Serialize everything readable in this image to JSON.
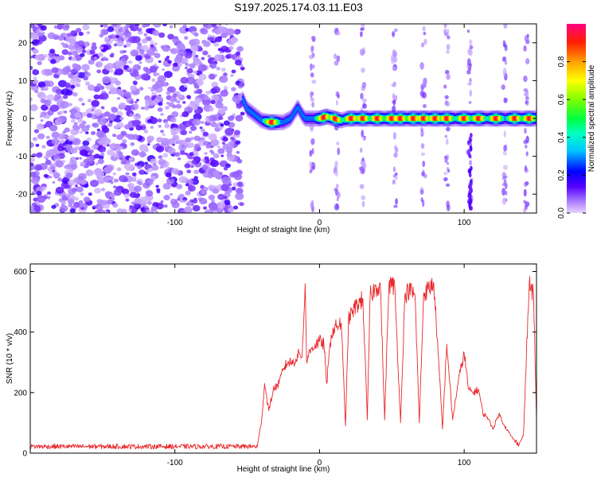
{
  "title": "S197.2025.174.03.11.E03",
  "chart_data": [
    {
      "type": "heatmap",
      "xlabel": "Height of straight line (km)",
      "ylabel": "Frequency (Hz)",
      "xlim": [
        -200,
        150
      ],
      "ylim": [
        -25,
        25
      ],
      "xticks": [
        -100,
        0,
        100
      ],
      "yticks": [
        -20,
        -10,
        0,
        10,
        20
      ],
      "colorbar": {
        "label": "Normalized spectral amplitude",
        "range": [
          0,
          1
        ],
        "ticks": [
          "0.0",
          "0.2",
          "0.4",
          "0.6",
          "0.8"
        ]
      },
      "noise_region": {
        "x_range": [
          -200,
          -53
        ],
        "description_color": "#7a2bff"
      },
      "signal_ridge": {
        "frequency_track": [
          {
            "x": -53,
            "y": 5
          },
          {
            "x": -50,
            "y": 2.5
          },
          {
            "x": -45,
            "y": 1
          },
          {
            "x": -40,
            "y": -0.5
          },
          {
            "x": -35,
            "y": -1
          },
          {
            "x": -25,
            "y": -1
          },
          {
            "x": -20,
            "y": 0
          },
          {
            "x": -15,
            "y": 3
          },
          {
            "x": -12,
            "y": 1
          },
          {
            "x": -10,
            "y": 0
          },
          {
            "x": 0,
            "y": 0
          },
          {
            "x": 5,
            "y": 0.5
          },
          {
            "x": 10,
            "y": 0
          },
          {
            "x": 15,
            "y": -0.5
          },
          {
            "x": 20,
            "y": 0
          },
          {
            "x": 150,
            "y": 0
          }
        ],
        "amplitude_peaks_x": [
          -33,
          3,
          11,
          22,
          30,
          40,
          50,
          56,
          65,
          72,
          80,
          88,
          100,
          110,
          122,
          135,
          145
        ]
      },
      "vertical_streaks_x": [
        -5,
        12,
        30,
        52,
        72,
        88,
        104,
        128,
        143
      ]
    },
    {
      "type": "line",
      "xlabel": "Height of straight line (km)",
      "ylabel": "SNR (10 * v/v)",
      "xlim": [
        -200,
        150
      ],
      "ylim": [
        0,
        625
      ],
      "xticks": [
        -100,
        0,
        100
      ],
      "yticks": [
        0,
        200,
        400,
        600
      ],
      "series": [
        {
          "color": "#e8272a",
          "points": [
            {
              "x": -200,
              "y": 22
            },
            {
              "x": -150,
              "y": 22
            },
            {
              "x": -100,
              "y": 22
            },
            {
              "x": -55,
              "y": 22
            },
            {
              "x": -43,
              "y": 22
            },
            {
              "x": -40,
              "y": 110
            },
            {
              "x": -38,
              "y": 230
            },
            {
              "x": -35,
              "y": 140
            },
            {
              "x": -32,
              "y": 210
            },
            {
              "x": -28,
              "y": 230
            },
            {
              "x": -25,
              "y": 280
            },
            {
              "x": -22,
              "y": 300
            },
            {
              "x": -18,
              "y": 300
            },
            {
              "x": -14,
              "y": 330
            },
            {
              "x": -12,
              "y": 320
            },
            {
              "x": -10,
              "y": 560
            },
            {
              "x": -9,
              "y": 310
            },
            {
              "x": -5,
              "y": 350
            },
            {
              "x": 0,
              "y": 370
            },
            {
              "x": 3,
              "y": 360
            },
            {
              "x": 5,
              "y": 230
            },
            {
              "x": 8,
              "y": 390
            },
            {
              "x": 10,
              "y": 410
            },
            {
              "x": 12,
              "y": 420
            },
            {
              "x": 15,
              "y": 430
            },
            {
              "x": 18,
              "y": 90
            },
            {
              "x": 20,
              "y": 440
            },
            {
              "x": 23,
              "y": 470
            },
            {
              "x": 26,
              "y": 490
            },
            {
              "x": 30,
              "y": 510
            },
            {
              "x": 33,
              "y": 110
            },
            {
              "x": 35,
              "y": 520
            },
            {
              "x": 38,
              "y": 540
            },
            {
              "x": 42,
              "y": 560
            },
            {
              "x": 45,
              "y": 110
            },
            {
              "x": 48,
              "y": 560
            },
            {
              "x": 52,
              "y": 550
            },
            {
              "x": 56,
              "y": 100
            },
            {
              "x": 59,
              "y": 520
            },
            {
              "x": 62,
              "y": 540
            },
            {
              "x": 66,
              "y": 520
            },
            {
              "x": 69,
              "y": 100
            },
            {
              "x": 72,
              "y": 530
            },
            {
              "x": 75,
              "y": 540
            },
            {
              "x": 79,
              "y": 560
            },
            {
              "x": 82,
              "y": 330
            },
            {
              "x": 85,
              "y": 80
            },
            {
              "x": 88,
              "y": 360
            },
            {
              "x": 92,
              "y": 110
            },
            {
              "x": 96,
              "y": 240
            },
            {
              "x": 100,
              "y": 330
            },
            {
              "x": 103,
              "y": 210
            },
            {
              "x": 106,
              "y": 200
            },
            {
              "x": 110,
              "y": 210
            },
            {
              "x": 113,
              "y": 130
            },
            {
              "x": 116,
              "y": 120
            },
            {
              "x": 120,
              "y": 80
            },
            {
              "x": 124,
              "y": 130
            },
            {
              "x": 128,
              "y": 90
            },
            {
              "x": 132,
              "y": 60
            },
            {
              "x": 135,
              "y": 40
            },
            {
              "x": 138,
              "y": 30
            },
            {
              "x": 141,
              "y": 60
            },
            {
              "x": 143,
              "y": 320
            },
            {
              "x": 145,
              "y": 560
            },
            {
              "x": 148,
              "y": 520
            },
            {
              "x": 150,
              "y": 110
            }
          ]
        }
      ]
    }
  ]
}
